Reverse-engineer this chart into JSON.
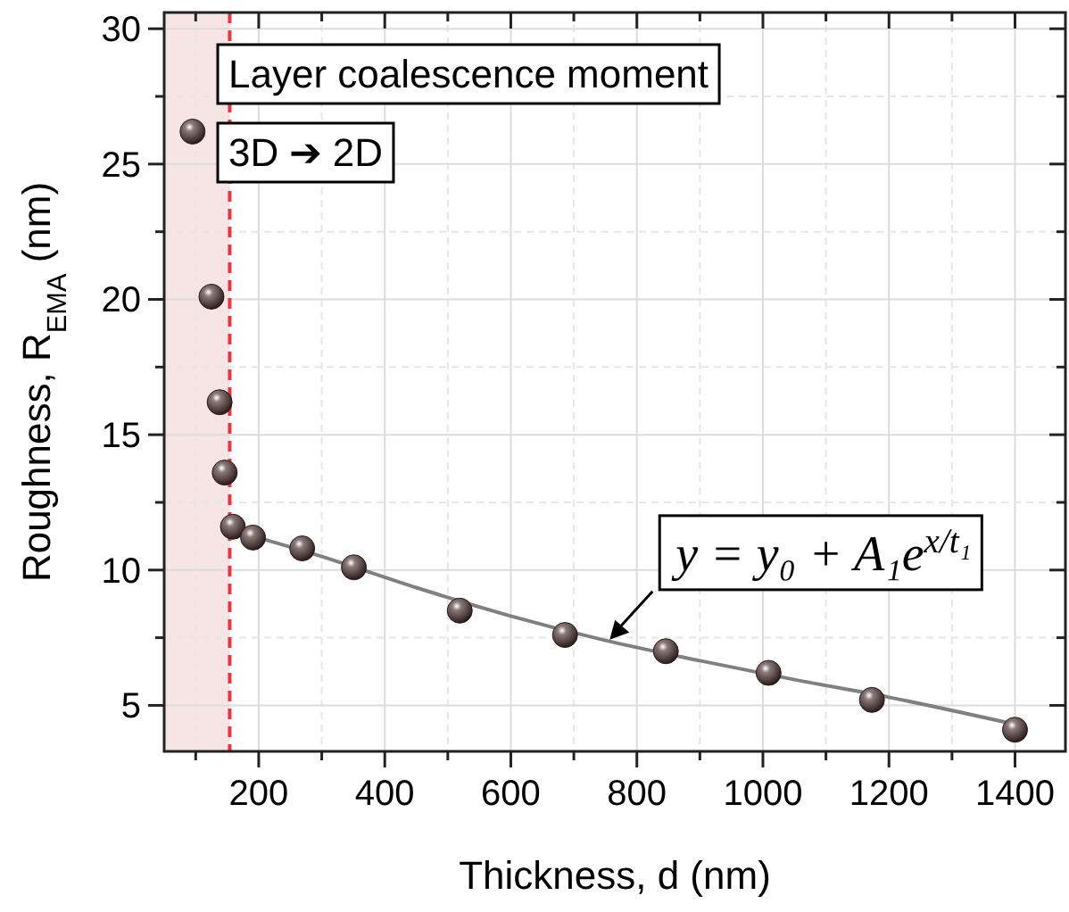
{
  "chart_data": {
    "type": "scatter",
    "xlabel": "Thickness, d (nm)",
    "ylabel": "Roughness, R$_{EMA}$ (nm)",
    "xlim": [
      50,
      1480
    ],
    "ylim": [
      3.3,
      30.6
    ],
    "xticks": [
      {
        "value": 100,
        "label": null
      },
      200,
      {
        "value": 300,
        "label": null
      },
      400,
      {
        "value": 500,
        "label": null
      },
      600,
      {
        "value": 700,
        "label": null
      },
      800,
      {
        "value": 900,
        "label": null
      },
      1000,
      {
        "value": 1100,
        "label": null
      },
      1200,
      {
        "value": 1300,
        "label": null
      },
      1400
    ],
    "yticks": [
      5,
      {
        "value": 7.5,
        "label": null
      },
      10,
      {
        "value": 12.5,
        "label": null
      },
      15,
      {
        "value": 17.5,
        "label": null
      },
      20,
      {
        "value": 22.5,
        "label": null
      },
      25,
      {
        "value": 27.5,
        "label": null
      },
      30
    ],
    "grid": true,
    "marker": "circle",
    "series": [
      {
        "color": "#2a1818",
        "x": [
          95,
          125,
          138,
          146,
          159,
          191,
          269,
          351,
          519,
          686,
          846,
          1009,
          1173,
          1400
        ],
        "values": [
          26.2,
          20.1,
          16.2,
          13.6,
          11.6,
          11.2,
          10.8,
          10.1,
          8.5,
          7.6,
          7.0,
          6.2,
          5.2,
          4.1
        ]
      },
      {
        "type": "line",
        "color": "#808080",
        "marker": "none",
        "x": [
          154,
          300,
          450,
          600,
          750,
          900,
          1050,
          1200,
          1400
        ],
        "values": [
          11.5,
          10.5,
          9.35,
          8.3,
          7.4,
          6.65,
          5.95,
          5.3,
          4.3
        ]
      }
    ],
    "bands": [
      {
        "axis": "x",
        "from": 50,
        "to": 154,
        "color": "#f7e4e4"
      }
    ],
    "ref_lines": [
      {
        "axis": "x",
        "value": 154,
        "color": "#e8383d",
        "line_style": "dashed"
      }
    ],
    "annotations": [
      "Layer coalescence moment",
      "3D ➔ 2D",
      {
        "text": "y = y₀ + A₁e$^{x/t₁}$",
        "x": 754,
        "y": 7.36
      }
    ]
  }
}
